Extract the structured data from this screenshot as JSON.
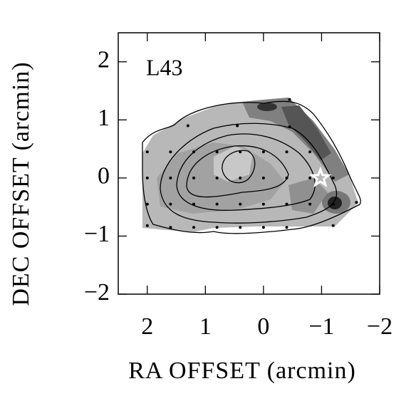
{
  "chart_data": {
    "type": "scatter",
    "annotation": "L43",
    "xlabel": "RA OFFSET (arcmin)",
    "ylabel": "DEC OFFSET (arcmin)",
    "xlim": [
      2.5,
      -2
    ],
    "ylim": [
      -2,
      2.5
    ],
    "xticks": [
      2,
      1,
      0,
      {
        "value": -1,
        "label": "−1"
      },
      {
        "value": -2,
        "label": "−2"
      }
    ],
    "yticks": [
      {
        "value": -2,
        "label": "−2"
      },
      {
        "value": -1,
        "label": "−1"
      },
      0,
      1,
      2
    ],
    "points": {
      "x": [
        -0.45,
        1.3,
        0.45,
        -0.45,
        2.0,
        1.6,
        1.2,
        0.8,
        0.4,
        0,
        -0.4,
        -0.8,
        2.0,
        1.6,
        1.2,
        0.8,
        0.4,
        0,
        -0.4,
        -0.8,
        -1.2,
        2.0,
        1.6,
        1.2,
        0.8,
        0.4,
        0,
        -0.4,
        -0.8,
        -1.2,
        -1.6,
        2.0,
        1.6,
        1.2,
        0.8,
        0.4,
        0,
        -0.4,
        -1.2
      ],
      "y": [
        1.35,
        0.9,
        0.9,
        0.88,
        0.45,
        0.45,
        0.45,
        0.45,
        0.45,
        0.45,
        0.45,
        0.45,
        0,
        0,
        0,
        0,
        0,
        0,
        0,
        0,
        0,
        -0.45,
        -0.45,
        -0.45,
        -0.45,
        -0.45,
        -0.45,
        -0.45,
        -0.45,
        -0.45,
        -0.42,
        -0.82,
        -0.85,
        -0.85,
        -0.85,
        -0.85,
        -0.85,
        -0.85,
        -0.82
      ],
      "color": "#000000"
    },
    "star": {
      "x": -0.98,
      "y": 0.0,
      "color": "#ffffff"
    }
  }
}
